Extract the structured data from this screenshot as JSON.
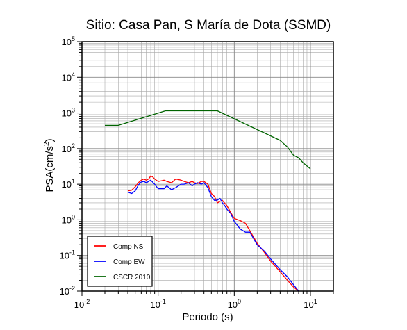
{
  "chart_data": {
    "type": "line",
    "title": "Sitio: Casa Pan, S María de Dota (SSMD)",
    "xlabel": "Periodo (s)",
    "ylabel_main": "PSA(cm/s",
    "ylabel_sup": "2",
    "ylabel_close": ")",
    "x_scale": "log",
    "y_scale": "log",
    "xlim": [
      0.01,
      20
    ],
    "ylim": [
      0.01,
      100000
    ],
    "grid": true,
    "legend_position": "bottom-left",
    "x_ticks": [
      {
        "value": 0.01,
        "base": "10",
        "exp": "-2"
      },
      {
        "value": 0.1,
        "base": "10",
        "exp": "-1"
      },
      {
        "value": 1,
        "base": "10",
        "exp": "0"
      },
      {
        "value": 10,
        "base": "10",
        "exp": "1"
      }
    ],
    "y_ticks": [
      {
        "value": 0.01,
        "base": "10",
        "exp": "-2"
      },
      {
        "value": 0.1,
        "base": "10",
        "exp": "-1"
      },
      {
        "value": 1,
        "base": "10",
        "exp": "0"
      },
      {
        "value": 10,
        "base": "10",
        "exp": "1"
      },
      {
        "value": 100,
        "base": "10",
        "exp": "2"
      },
      {
        "value": 1000,
        "base": "10",
        "exp": "3"
      },
      {
        "value": 10000,
        "base": "10",
        "exp": "4"
      },
      {
        "value": 100000,
        "base": "10",
        "exp": "5"
      }
    ],
    "series": [
      {
        "name": "Comp NS",
        "color": "#ff0000",
        "points": [
          [
            0.04,
            6.5
          ],
          [
            0.045,
            6.8
          ],
          [
            0.05,
            8.5
          ],
          [
            0.055,
            11
          ],
          [
            0.06,
            13
          ],
          [
            0.065,
            14
          ],
          [
            0.07,
            13
          ],
          [
            0.075,
            14
          ],
          [
            0.08,
            17
          ],
          [
            0.085,
            16
          ],
          [
            0.09,
            14
          ],
          [
            0.1,
            12
          ],
          [
            0.11,
            12.5
          ],
          [
            0.12,
            13
          ],
          [
            0.13,
            12
          ],
          [
            0.15,
            11
          ],
          [
            0.17,
            14
          ],
          [
            0.2,
            13
          ],
          [
            0.22,
            12
          ],
          [
            0.25,
            11
          ],
          [
            0.28,
            12
          ],
          [
            0.3,
            11
          ],
          [
            0.33,
            10.5
          ],
          [
            0.37,
            12
          ],
          [
            0.4,
            12
          ],
          [
            0.45,
            10
          ],
          [
            0.5,
            5.5
          ],
          [
            0.55,
            4.5
          ],
          [
            0.6,
            3
          ],
          [
            0.65,
            3.3
          ],
          [
            0.7,
            3.5
          ],
          [
            0.8,
            2.5
          ],
          [
            0.9,
            1.6
          ],
          [
            1.0,
            1.1
          ],
          [
            1.2,
            0.95
          ],
          [
            1.4,
            0.8
          ],
          [
            1.6,
            0.5
          ],
          [
            2.0,
            0.22
          ],
          [
            2.5,
            0.12
          ],
          [
            3.0,
            0.07
          ],
          [
            4.0,
            0.035
          ],
          [
            5.0,
            0.02
          ],
          [
            6.0,
            0.013
          ],
          [
            7.0,
            0.01
          ]
        ]
      },
      {
        "name": "Comp EW",
        "color": "#0000ff",
        "points": [
          [
            0.04,
            6
          ],
          [
            0.045,
            5.5
          ],
          [
            0.05,
            6.5
          ],
          [
            0.055,
            9.5
          ],
          [
            0.06,
            11.5
          ],
          [
            0.065,
            12
          ],
          [
            0.07,
            11
          ],
          [
            0.075,
            12
          ],
          [
            0.08,
            13
          ],
          [
            0.09,
            10
          ],
          [
            0.1,
            7.5
          ],
          [
            0.11,
            7.5
          ],
          [
            0.12,
            7.5
          ],
          [
            0.13,
            9
          ],
          [
            0.15,
            7
          ],
          [
            0.17,
            8
          ],
          [
            0.2,
            10
          ],
          [
            0.22,
            10
          ],
          [
            0.25,
            11
          ],
          [
            0.28,
            9
          ],
          [
            0.3,
            10
          ],
          [
            0.33,
            11
          ],
          [
            0.37,
            10
          ],
          [
            0.4,
            11
          ],
          [
            0.45,
            8
          ],
          [
            0.5,
            4.5
          ],
          [
            0.55,
            3.5
          ],
          [
            0.6,
            3.6
          ],
          [
            0.65,
            4
          ],
          [
            0.7,
            3
          ],
          [
            0.75,
            2.5
          ],
          [
            0.8,
            2
          ],
          [
            0.9,
            1.5
          ],
          [
            1.0,
            0.9
          ],
          [
            1.2,
            0.55
          ],
          [
            1.4,
            0.45
          ],
          [
            1.6,
            0.45
          ],
          [
            2.0,
            0.2
          ],
          [
            2.5,
            0.13
          ],
          [
            3.0,
            0.08
          ],
          [
            4.0,
            0.04
          ],
          [
            5.0,
            0.025
          ],
          [
            6.0,
            0.015
          ],
          [
            7.0,
            0.01
          ]
        ]
      },
      {
        "name": "CSCR 2010",
        "color": "#006400",
        "points": [
          [
            0.02,
            450
          ],
          [
            0.03,
            450
          ],
          [
            0.125,
            1150
          ],
          [
            0.6,
            1150
          ],
          [
            4.0,
            170
          ],
          [
            5.0,
            110
          ],
          [
            6.0,
            65
          ],
          [
            7.0,
            55
          ],
          [
            8.0,
            40
          ],
          [
            10.0,
            27
          ]
        ]
      }
    ]
  }
}
